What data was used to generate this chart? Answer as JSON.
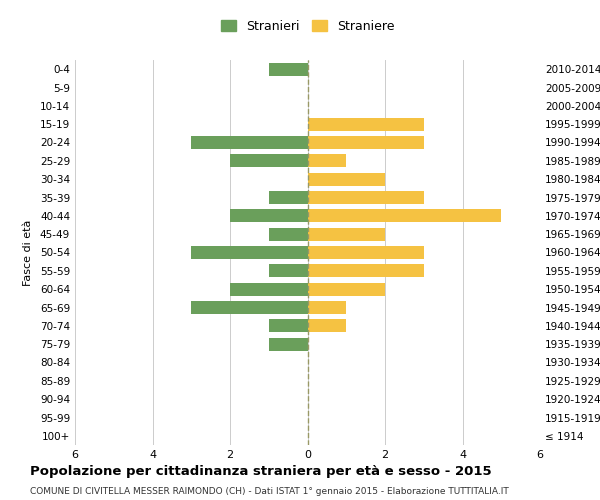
{
  "age_groups": [
    "100+",
    "95-99",
    "90-94",
    "85-89",
    "80-84",
    "75-79",
    "70-74",
    "65-69",
    "60-64",
    "55-59",
    "50-54",
    "45-49",
    "40-44",
    "35-39",
    "30-34",
    "25-29",
    "20-24",
    "15-19",
    "10-14",
    "5-9",
    "0-4"
  ],
  "birth_years": [
    "≤ 1914",
    "1915-1919",
    "1920-1924",
    "1925-1929",
    "1930-1934",
    "1935-1939",
    "1940-1944",
    "1945-1949",
    "1950-1954",
    "1955-1959",
    "1960-1964",
    "1965-1969",
    "1970-1974",
    "1975-1979",
    "1980-1984",
    "1985-1989",
    "1990-1994",
    "1995-1999",
    "2000-2004",
    "2005-2009",
    "2010-2014"
  ],
  "males": [
    0,
    0,
    0,
    0,
    0,
    1,
    1,
    3,
    2,
    1,
    3,
    1,
    2,
    1,
    0,
    2,
    3,
    0,
    0,
    0,
    1
  ],
  "females": [
    0,
    0,
    0,
    0,
    0,
    0,
    1,
    1,
    2,
    3,
    3,
    2,
    5,
    3,
    2,
    1,
    3,
    3,
    0,
    0,
    0
  ],
  "male_color": "#6a9f5b",
  "female_color": "#f5c242",
  "title": "Popolazione per cittadinanza straniera per età e sesso - 2015",
  "subtitle": "COMUNE DI CIVITELLA MESSER RAIMONDO (CH) - Dati ISTAT 1° gennaio 2015 - Elaborazione TUTTITALIA.IT",
  "ylabel_left": "Fasce di età",
  "legend_male": "Stranieri",
  "legend_female": "Straniere",
  "xlim": 6,
  "background_color": "#ffffff",
  "grid_color": "#cccccc"
}
